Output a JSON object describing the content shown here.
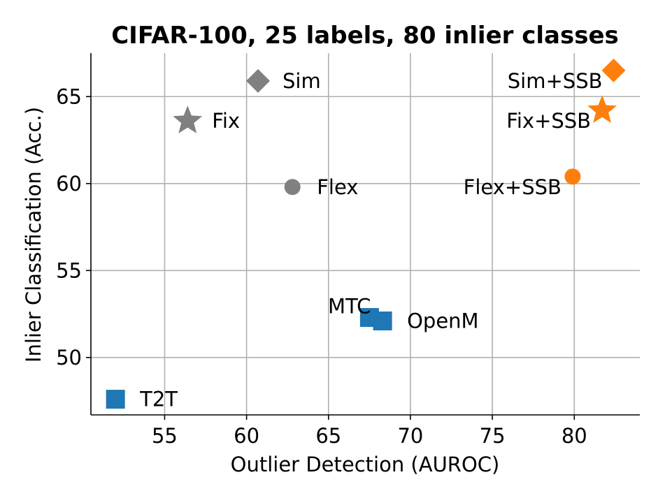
{
  "chart_data": {
    "type": "scatter",
    "title": "CIFAR-100, 25 labels, 80 inlier classes",
    "xlabel": "Outlier Detection (AUROC)",
    "ylabel": "Inlier Classification (Acc.)",
    "xlim": [
      50.5,
      84
    ],
    "ylim": [
      46.7,
      67.5
    ],
    "xticks": [
      55,
      60,
      65,
      70,
      75,
      80
    ],
    "yticks": [
      50,
      55,
      60,
      65
    ],
    "grid": true,
    "colors": {
      "gray": "#808080",
      "orange": "#ff7f0e",
      "blue": "#1f77b4"
    },
    "points": [
      {
        "label": "Sim",
        "x": 60.7,
        "y": 65.9,
        "marker": "diamond",
        "color": "#808080",
        "label_pos": "right"
      },
      {
        "label": "Fix",
        "x": 56.4,
        "y": 63.6,
        "marker": "star",
        "color": "#808080",
        "label_pos": "right"
      },
      {
        "label": "Flex",
        "x": 62.8,
        "y": 59.8,
        "marker": "circle",
        "color": "#808080",
        "label_pos": "right"
      },
      {
        "label": "Sim+SSB",
        "x": 82.4,
        "y": 66.5,
        "marker": "diamond",
        "color": "#ff7f0e",
        "label_pos": "left-below"
      },
      {
        "label": "Fix+SSB",
        "x": 81.7,
        "y": 64.2,
        "marker": "star",
        "color": "#ff7f0e",
        "label_pos": "left-below"
      },
      {
        "label": "Flex+SSB",
        "x": 79.9,
        "y": 60.4,
        "marker": "circle",
        "color": "#ff7f0e",
        "label_pos": "left-below"
      },
      {
        "label": "MTC",
        "x": 67.5,
        "y": 52.3,
        "marker": "square",
        "color": "#1f77b4",
        "label_pos": "left-above"
      },
      {
        "label": "OpenM",
        "x": 68.3,
        "y": 52.1,
        "marker": "square",
        "color": "#1f77b4",
        "label_pos": "right"
      },
      {
        "label": "T2T",
        "x": 52.0,
        "y": 47.6,
        "marker": "square",
        "color": "#1f77b4",
        "label_pos": "right"
      }
    ]
  }
}
